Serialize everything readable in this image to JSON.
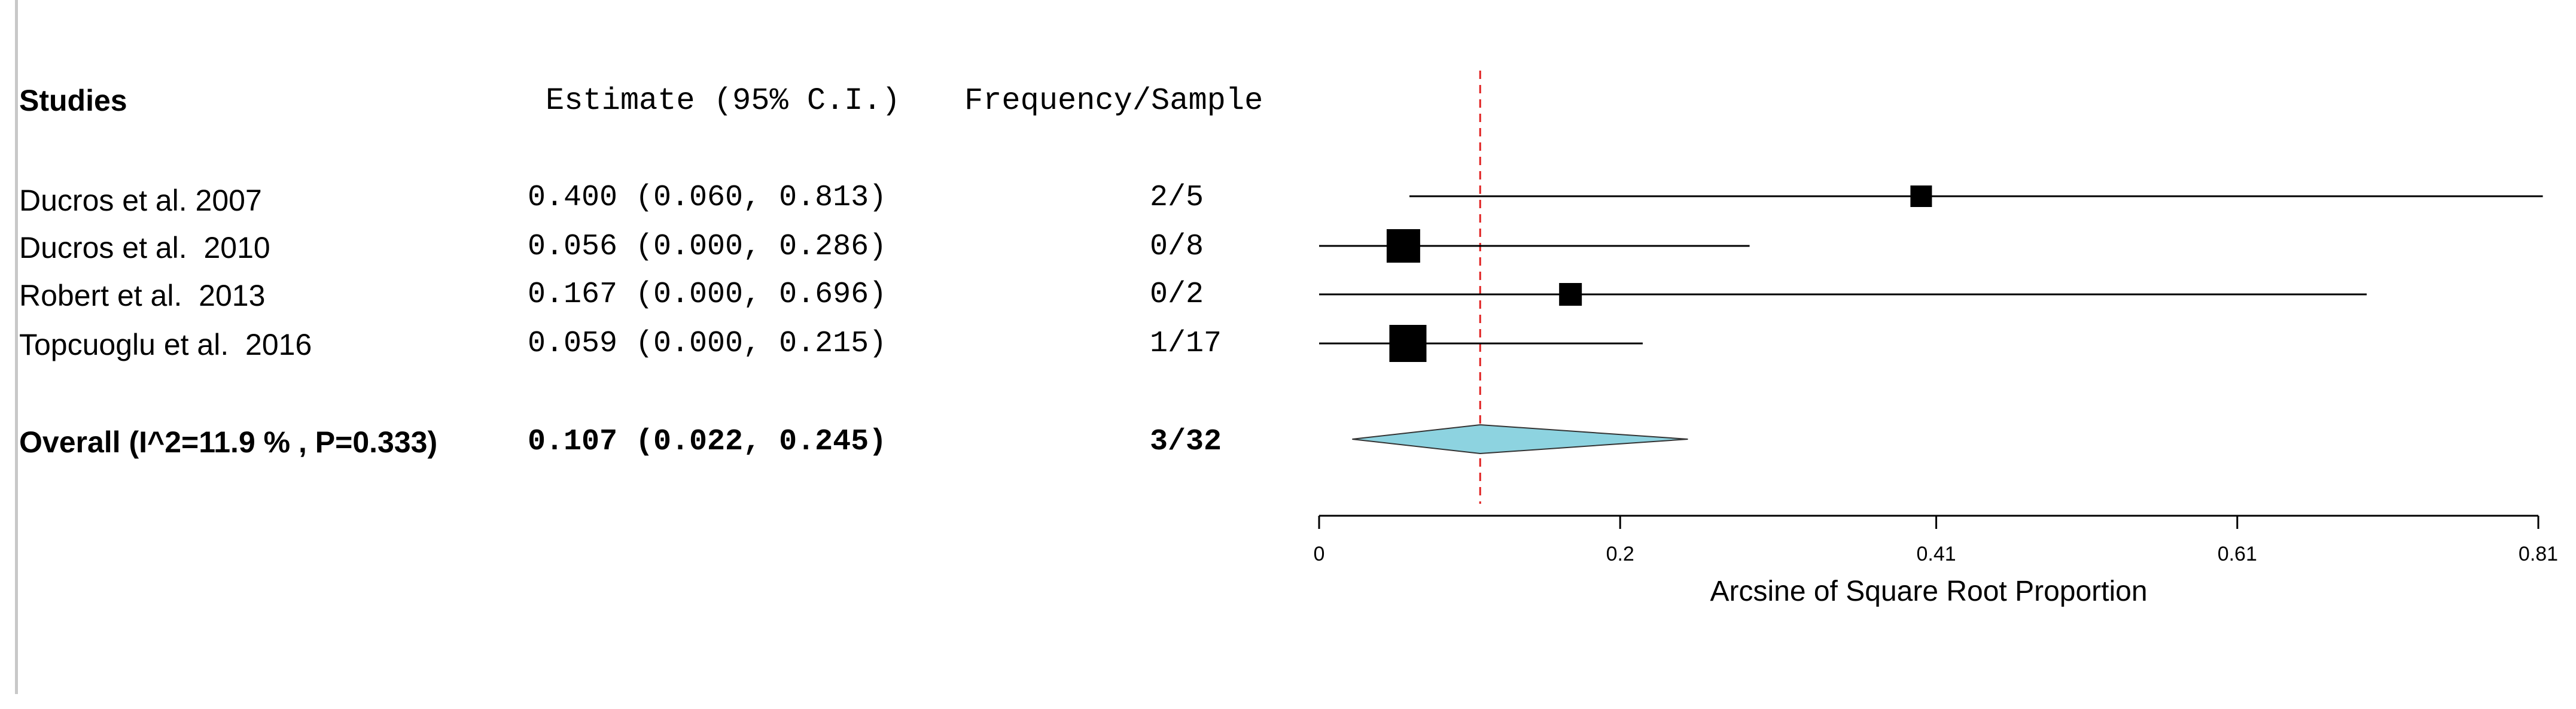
{
  "headers": {
    "studies": "Studies",
    "estimate": "Estimate (95% C.I.)",
    "frequency": "Frequency/Sample"
  },
  "studies": [
    {
      "name": "Ducros et al. 2007",
      "estimate_text": "0.400 (0.060, 0.813)",
      "freq": "2/5"
    },
    {
      "name": "Ducros et al.  2010",
      "estimate_text": "0.056 (0.000, 0.286)",
      "freq": "0/8"
    },
    {
      "name": "Robert et al.  2013",
      "estimate_text": "0.167 (0.000, 0.696)",
      "freq": "0/2"
    },
    {
      "name": "Topcuoglu et al.  2016",
      "estimate_text": "0.059 (0.000, 0.215)",
      "freq": "1/17"
    }
  ],
  "overall": {
    "label": "Overall (I^2=11.9 % , P=0.333)",
    "estimate_text": "0.107 (0.022, 0.245)",
    "freq": "3/32"
  },
  "chart_data": {
    "type": "scatter",
    "subtype": "forest-plot",
    "xlabel": "Arcsine of Square Root Proportion",
    "xlim": [
      0,
      0.81
    ],
    "x_ticks": [
      0,
      0.2,
      0.41,
      0.61,
      0.81
    ],
    "x_tick_labels": [
      "0",
      "0.2",
      "0.41",
      "0.61",
      "0.81"
    ],
    "reference_line": 0.107,
    "points": [
      {
        "study": "Ducros et al. 2007",
        "x": 0.4,
        "lower": 0.06,
        "upper": 0.813,
        "weight": 0.6
      },
      {
        "study": "Ducros et al.  2010",
        "x": 0.056,
        "lower": 0.0,
        "upper": 0.286,
        "weight": 1.1
      },
      {
        "study": "Robert et al.  2013",
        "x": 0.167,
        "lower": 0.0,
        "upper": 0.696,
        "weight": 0.65
      },
      {
        "study": "Topcuoglu et al.  2016",
        "x": 0.059,
        "lower": 0.0,
        "upper": 0.215,
        "weight": 1.25
      }
    ],
    "summary": {
      "x": 0.107,
      "lower": 0.022,
      "upper": 0.245
    },
    "colors": {
      "summary_fill": "#8dd3e0",
      "reference_line": "#e02020",
      "marks": "#000000"
    }
  }
}
